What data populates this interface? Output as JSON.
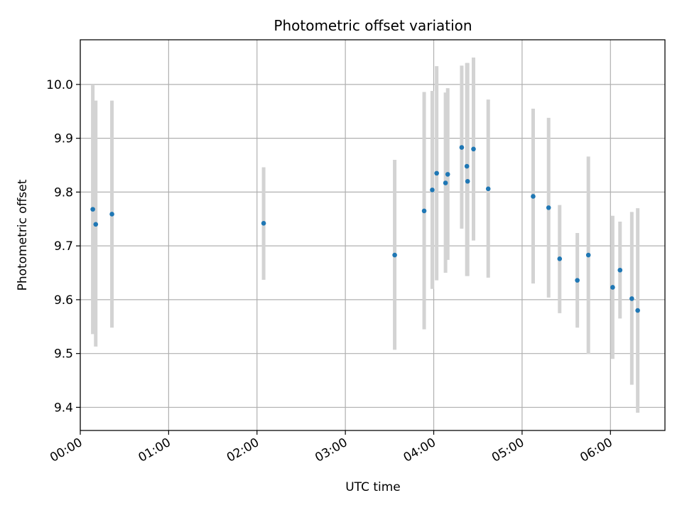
{
  "chart_data": {
    "type": "scatter",
    "title": "Photometric offset variation",
    "xlabel": "UTC time",
    "ylabel": "Photometric offset",
    "grid": true,
    "x_unit": "UTC",
    "xlim": [
      "00:00",
      "06:37"
    ],
    "ylim": [
      9.357,
      10.083
    ],
    "x_ticks": [
      "00:00",
      "01:00",
      "02:00",
      "03:00",
      "04:00",
      "05:00",
      "06:00"
    ],
    "y_ticks": [
      "9.4",
      "9.5",
      "9.6",
      "9.7",
      "9.8",
      "9.9",
      "10.0"
    ],
    "colors": {
      "points": "#1f77b4",
      "errorbars": "#d3d3d3",
      "grid": "#b0b0b0"
    },
    "series": [
      {
        "points": [
          {
            "x": "00:08:30",
            "y": 9.768,
            "lo": 9.536,
            "hi": 10.0
          },
          {
            "x": "00:10:30",
            "y": 9.74,
            "lo": 9.513,
            "hi": 9.97
          },
          {
            "x": "00:21:30",
            "y": 9.759,
            "lo": 9.548,
            "hi": 9.97
          },
          {
            "x": "02:04:30",
            "y": 9.742,
            "lo": 9.637,
            "hi": 9.846
          },
          {
            "x": "03:33:30",
            "y": 9.683,
            "lo": 9.507,
            "hi": 9.86
          },
          {
            "x": "03:53:30",
            "y": 9.765,
            "lo": 9.545,
            "hi": 9.986
          },
          {
            "x": "03:59:00",
            "y": 9.804,
            "lo": 9.62,
            "hi": 9.988
          },
          {
            "x": "04:02:00",
            "y": 9.835,
            "lo": 9.636,
            "hi": 10.034
          },
          {
            "x": "04:08:00",
            "y": 9.817,
            "lo": 9.65,
            "hi": 9.985
          },
          {
            "x": "04:09:30",
            "y": 9.833,
            "lo": 9.674,
            "hi": 9.993
          },
          {
            "x": "04:19:00",
            "y": 9.883,
            "lo": 9.732,
            "hi": 10.035
          },
          {
            "x": "04:22:30",
            "y": 9.848,
            "lo": 9.644,
            "hi": 10.04
          },
          {
            "x": "04:23:00",
            "y": 9.82,
            "lo": 9.644,
            "hi": 10.04
          },
          {
            "x": "04:27:00",
            "y": 9.88,
            "lo": 9.71,
            "hi": 10.05
          },
          {
            "x": "04:37:00",
            "y": 9.806,
            "lo": 9.641,
            "hi": 9.972
          },
          {
            "x": "05:07:30",
            "y": 9.792,
            "lo": 9.63,
            "hi": 9.955
          },
          {
            "x": "05:18:00",
            "y": 9.771,
            "lo": 9.604,
            "hi": 9.938
          },
          {
            "x": "05:25:30",
            "y": 9.676,
            "lo": 9.575,
            "hi": 9.776
          },
          {
            "x": "05:37:30",
            "y": 9.636,
            "lo": 9.548,
            "hi": 9.724
          },
          {
            "x": "05:45:00",
            "y": 9.683,
            "lo": 9.499,
            "hi": 9.866
          },
          {
            "x": "06:01:30",
            "y": 9.623,
            "lo": 9.49,
            "hi": 9.756
          },
          {
            "x": "06:06:30",
            "y": 9.655,
            "lo": 9.565,
            "hi": 9.745
          },
          {
            "x": "06:14:30",
            "y": 9.602,
            "lo": 9.442,
            "hi": 9.763
          },
          {
            "x": "06:18:30",
            "y": 9.58,
            "lo": 9.39,
            "hi": 9.77
          }
        ]
      }
    ]
  }
}
